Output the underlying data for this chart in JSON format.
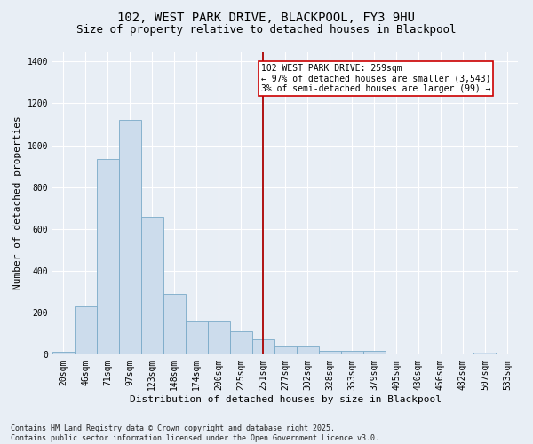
{
  "title": "102, WEST PARK DRIVE, BLACKPOOL, FY3 9HU",
  "subtitle": "Size of property relative to detached houses in Blackpool",
  "xlabel": "Distribution of detached houses by size in Blackpool",
  "ylabel": "Number of detached properties",
  "bar_color": "#ccdcec",
  "bar_edge_color": "#7aaac8",
  "background_color": "#e8eef5",
  "grid_color": "#ffffff",
  "categories": [
    "20sqm",
    "46sqm",
    "71sqm",
    "97sqm",
    "123sqm",
    "148sqm",
    "174sqm",
    "200sqm",
    "225sqm",
    "251sqm",
    "277sqm",
    "302sqm",
    "328sqm",
    "353sqm",
    "379sqm",
    "405sqm",
    "430sqm",
    "456sqm",
    "482sqm",
    "507sqm",
    "533sqm"
  ],
  "values": [
    15,
    230,
    935,
    1120,
    660,
    290,
    160,
    160,
    110,
    75,
    40,
    40,
    20,
    18,
    18,
    0,
    0,
    0,
    0,
    8,
    0
  ],
  "vline_index": 9,
  "vline_color": "#aa0000",
  "annotation_text": "102 WEST PARK DRIVE: 259sqm\n← 97% of detached houses are smaller (3,543)\n3% of semi-detached houses are larger (99) →",
  "annotation_box_color": "#ffffff",
  "annotation_box_edge_color": "#cc0000",
  "ylim": [
    0,
    1450
  ],
  "yticks": [
    0,
    200,
    400,
    600,
    800,
    1000,
    1200,
    1400
  ],
  "footer_text": "Contains HM Land Registry data © Crown copyright and database right 2025.\nContains public sector information licensed under the Open Government Licence v3.0.",
  "title_fontsize": 10,
  "subtitle_fontsize": 9,
  "label_fontsize": 8,
  "tick_fontsize": 7,
  "annotation_fontsize": 7,
  "footer_fontsize": 6
}
